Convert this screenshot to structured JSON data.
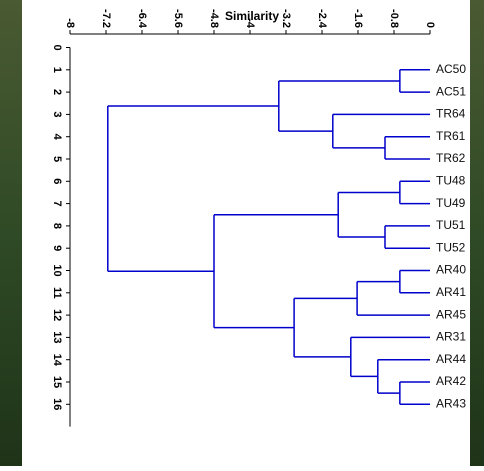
{
  "chart_data": {
    "type": "dendrogram",
    "title": "Similarity",
    "color": "#0000cc",
    "xlim": [
      -8,
      0
    ],
    "xticks": [
      -8,
      -7.2,
      -6.4,
      -5.6,
      -4.8,
      -4,
      -3.2,
      -2.4,
      -1.6,
      -0.8,
      0
    ],
    "ylim": [
      0,
      17
    ],
    "yticks": [
      0,
      1,
      2,
      3,
      4,
      5,
      6,
      7,
      8,
      9,
      10,
      11,
      12,
      13,
      14,
      15,
      16
    ],
    "tree": {
      "height": -7.16,
      "children": [
        {
          "height": -3.36,
          "children": [
            {
              "height": -0.67,
              "children": [
                "AC50",
                "AC51"
              ]
            },
            {
              "height": -2.16,
              "children": [
                "TR64",
                {
                  "height": -1.0,
                  "children": [
                    "TR61",
                    "TR62"
                  ]
                }
              ]
            }
          ]
        },
        {
          "height": -4.8,
          "children": [
            {
              "height": -2.04,
              "children": [
                {
                  "height": -0.67,
                  "children": [
                    "TU48",
                    "TU49"
                  ]
                },
                {
                  "height": -1.0,
                  "children": [
                    "TU51",
                    "TU52"
                  ]
                }
              ]
            },
            {
              "height": -3.02,
              "children": [
                {
                  "height": -1.62,
                  "children": [
                    {
                      "height": -0.67,
                      "children": [
                        "AR40",
                        "AR41"
                      ]
                    },
                    "AR45"
                  ]
                },
                {
                  "height": -1.76,
                  "children": [
                    "AR31",
                    {
                      "height": -1.16,
                      "children": [
                        "AR44",
                        {
                          "height": -0.67,
                          "children": [
                            "AR42",
                            "AR43"
                          ]
                        }
                      ]
                    }
                  ]
                }
              ]
            }
          ]
        }
      ]
    }
  }
}
